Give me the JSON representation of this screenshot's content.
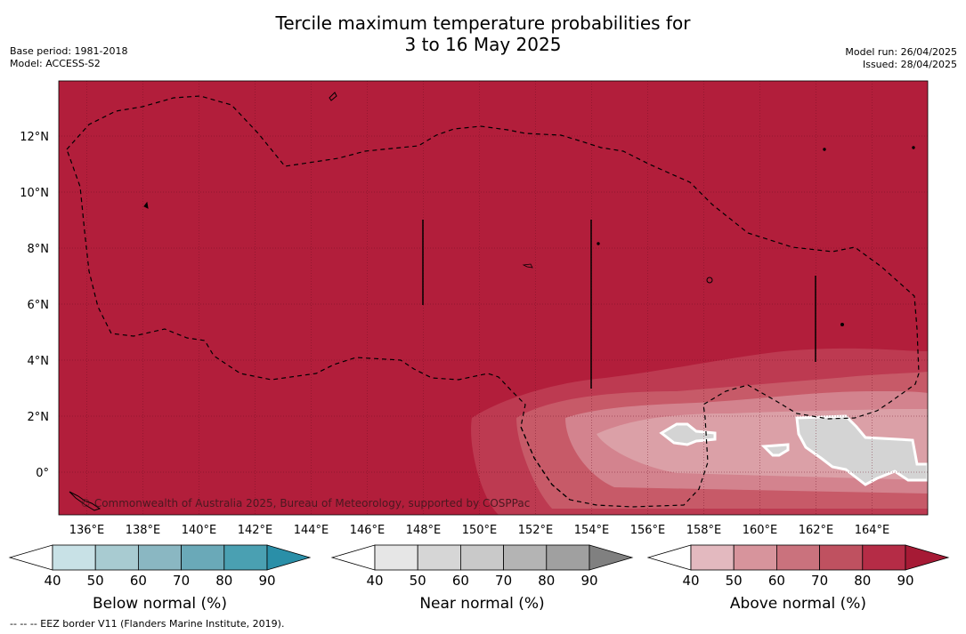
{
  "title_line1": "Tercile maximum temperature probabilities for",
  "title_line2": "3 to 16 May 2025",
  "base_period": "Base period: 1981-2018",
  "model": "Model: ACCESS-S2",
  "model_run": "Model run: 26/04/2025",
  "issued": "Issued: 28/04/2025",
  "copyright": "© Commonwealth of Australia 2025, Bureau of Meteorology, supported by COSPPac",
  "footnote": "--  --  -- EEZ border V11 (Flanders Marine Institute, 2019).",
  "lon_labels": [
    "136°E",
    "138°E",
    "140°E",
    "142°E",
    "144°E",
    "146°E",
    "148°E",
    "150°E",
    "152°E",
    "154°E",
    "156°E",
    "158°E",
    "160°E",
    "162°E",
    "164°E"
  ],
  "lat_labels": [
    "12°N",
    "10°N",
    "8°N",
    "6°N",
    "4°N",
    "2°N",
    "0°"
  ],
  "colorbars": [
    {
      "label": "Below normal (%)",
      "ticks": [
        "40",
        "50",
        "60",
        "70",
        "80",
        "90"
      ],
      "colors": [
        "#ffffff",
        "#c8e1e6",
        "#a8cbd1",
        "#8ab7c2",
        "#6aa9b8",
        "#4aa0b2",
        "#2a8fa8"
      ]
    },
    {
      "label": "Near normal (%)",
      "ticks": [
        "40",
        "50",
        "60",
        "70",
        "80",
        "90"
      ],
      "colors": [
        "#ffffff",
        "#e6e6e6",
        "#d6d6d6",
        "#c9c9c9",
        "#b4b4b4",
        "#a0a0a0",
        "#808080"
      ]
    },
    {
      "label": "Above normal (%)",
      "ticks": [
        "40",
        "50",
        "60",
        "70",
        "80",
        "90"
      ],
      "colors": [
        "#ffffff",
        "#e3b9bf",
        "#d7949c",
        "#ca727d",
        "#bf5160",
        "#b52c46",
        "#a61a35"
      ]
    }
  ],
  "colors": {
    "above_90": "#b21e3b",
    "above_80": "#bd3a51",
    "above_70": "#c75a68",
    "above_60": "#d3838e",
    "above_50": "#dba0a7",
    "near_50": "#d4d4d4"
  }
}
